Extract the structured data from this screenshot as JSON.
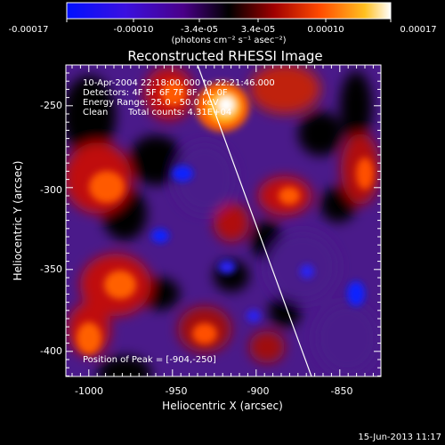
{
  "colorbar": {
    "ticks": [
      "-0.00017",
      "-0.00010",
      "-3.4e-05",
      "3.4e-05",
      "0.00010",
      "0.00017"
    ],
    "units": "(photons cm⁻² s⁻¹ asec⁻²)",
    "colors": [
      "#0010ff",
      "#5a00c0",
      "#000000",
      "#b00000",
      "#ff5000",
      "#ffc020",
      "#ffffff"
    ]
  },
  "plot": {
    "title": "Reconstructed RHESSI Image",
    "x_label": "Heliocentric X (arcsec)",
    "y_label": "Heliocentric Y (arcsec)",
    "x_ticks": [
      "-1000",
      "-950",
      "-900",
      "-850"
    ],
    "y_ticks": [
      "-250",
      "-300",
      "-350",
      "-400"
    ],
    "annotations": {
      "time_range": "10-Apr-2004 22:18:00.000 to 22:21:46.000",
      "detectors": "Detectors: 4F 5F 6F 7F 8F, AL 0F",
      "energy_range": "Energy Range: 25.0 - 50.0 keV",
      "method": "Clean",
      "total_counts": "Total counts: 4.31E+04",
      "peak": "Position of Peak = [-904,-250]"
    }
  },
  "footer": {
    "date": "15-Jun-2013 11:17"
  }
}
